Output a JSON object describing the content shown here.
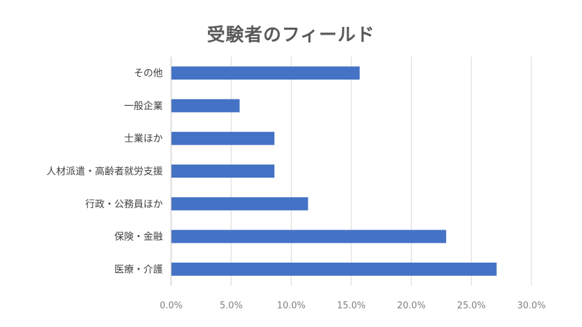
{
  "chart_data": {
    "type": "bar",
    "orientation": "horizontal",
    "title": "受験者のフィールド",
    "categories": [
      "その他",
      "一般企業",
      "士業ほか",
      "人材派遣・高齢者就労支援",
      "行政・公務員ほか",
      "保険・金融",
      "医療・介護"
    ],
    "values": [
      15.7,
      5.7,
      8.6,
      8.6,
      11.4,
      22.9,
      27.1
    ],
    "xlim": [
      0,
      30
    ],
    "x_ticks": [
      0,
      5,
      10,
      15,
      20,
      25,
      30
    ],
    "x_tick_labels": [
      "0.0%",
      "5.0%",
      "10.0%",
      "15.0%",
      "20.0%",
      "25.0%",
      "30.0%"
    ],
    "xlabel": "",
    "ylabel": "",
    "grid": true,
    "legend": "none",
    "bar_color": "#4472c4"
  }
}
